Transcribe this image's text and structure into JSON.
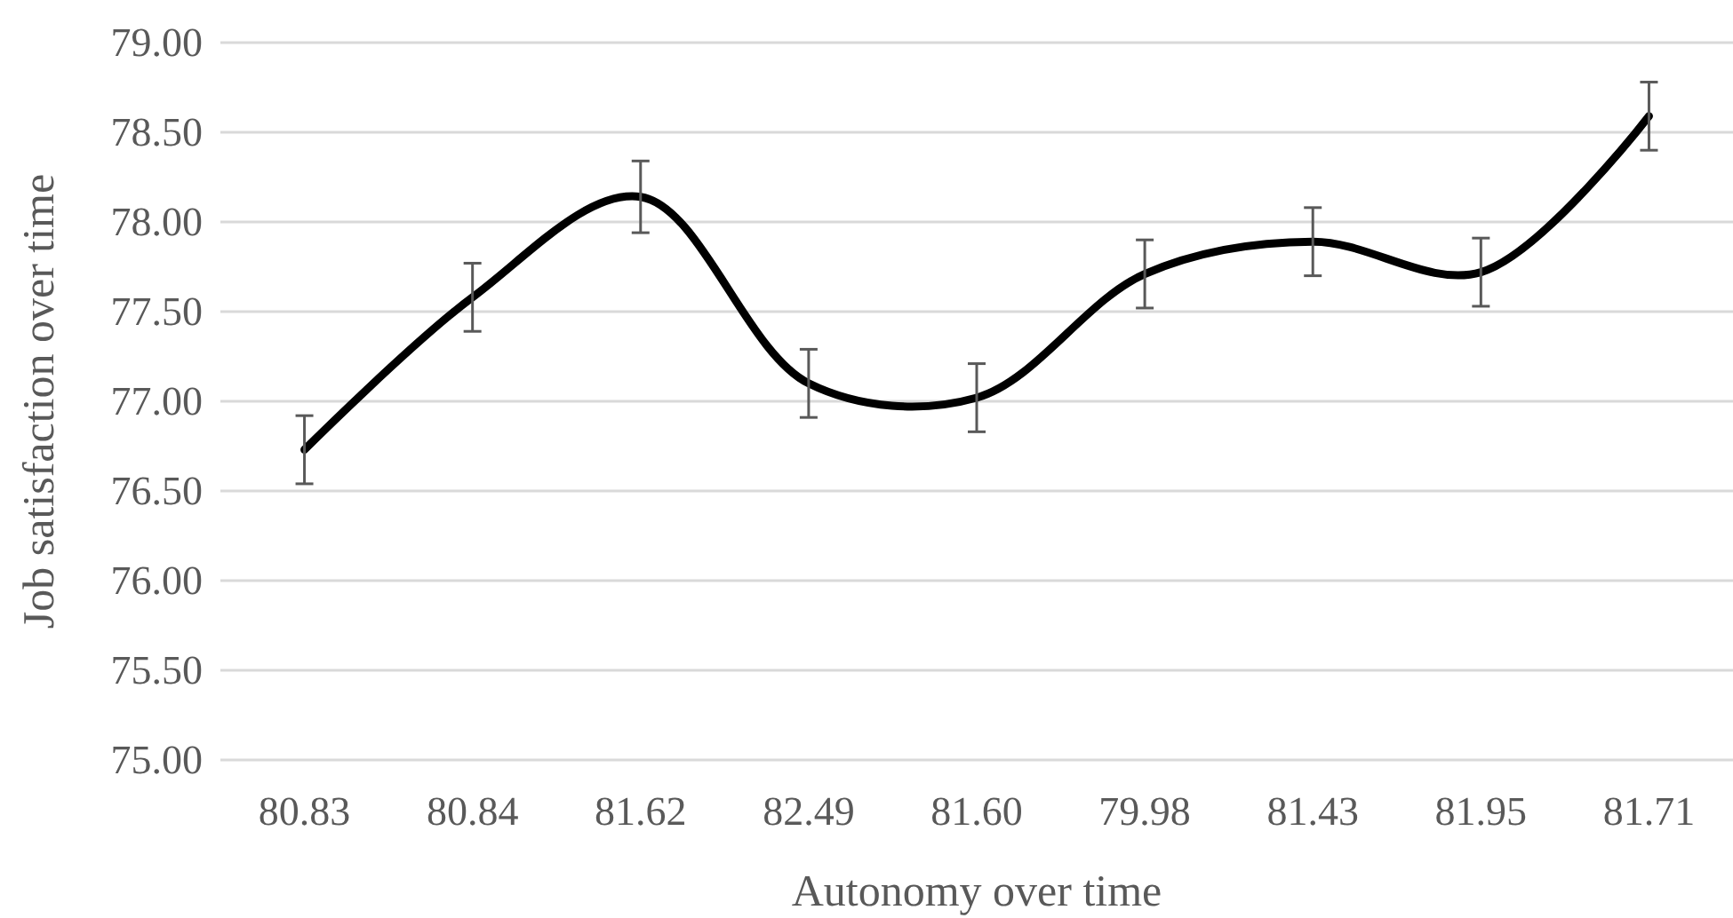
{
  "chart_data": {
    "type": "line",
    "xlabel": "Autonomy over time",
    "ylabel": "Job satisfaction over time",
    "categories": [
      "80.83",
      "80.84",
      "81.62",
      "82.49",
      "81.60",
      "79.98",
      "81.43",
      "81.95",
      "81.71"
    ],
    "series": [
      {
        "color": "#000000",
        "values": [
          76.73,
          77.58,
          78.14,
          77.1,
          77.02,
          77.71,
          77.89,
          77.72,
          78.59
        ],
        "errors": [
          0.19,
          0.19,
          0.2,
          0.19,
          0.19,
          0.19,
          0.19,
          0.19,
          0.19
        ]
      }
    ],
    "ylim": [
      75,
      79
    ],
    "yticks": [
      {
        "value": 75,
        "label": "75.00"
      },
      {
        "value": 75.5,
        "label": "75.50"
      },
      {
        "value": 76,
        "label": "76.00"
      },
      {
        "value": 76.5,
        "label": "76.50"
      },
      {
        "value": 77,
        "label": "77.00"
      },
      {
        "value": 77.5,
        "label": "77.50"
      },
      {
        "value": 78,
        "label": "78.00"
      },
      {
        "value": 78.5,
        "label": "78.50"
      },
      {
        "value": 79,
        "label": "79.00"
      }
    ],
    "grid": "y",
    "marker": "none",
    "line_style": "solid"
  }
}
